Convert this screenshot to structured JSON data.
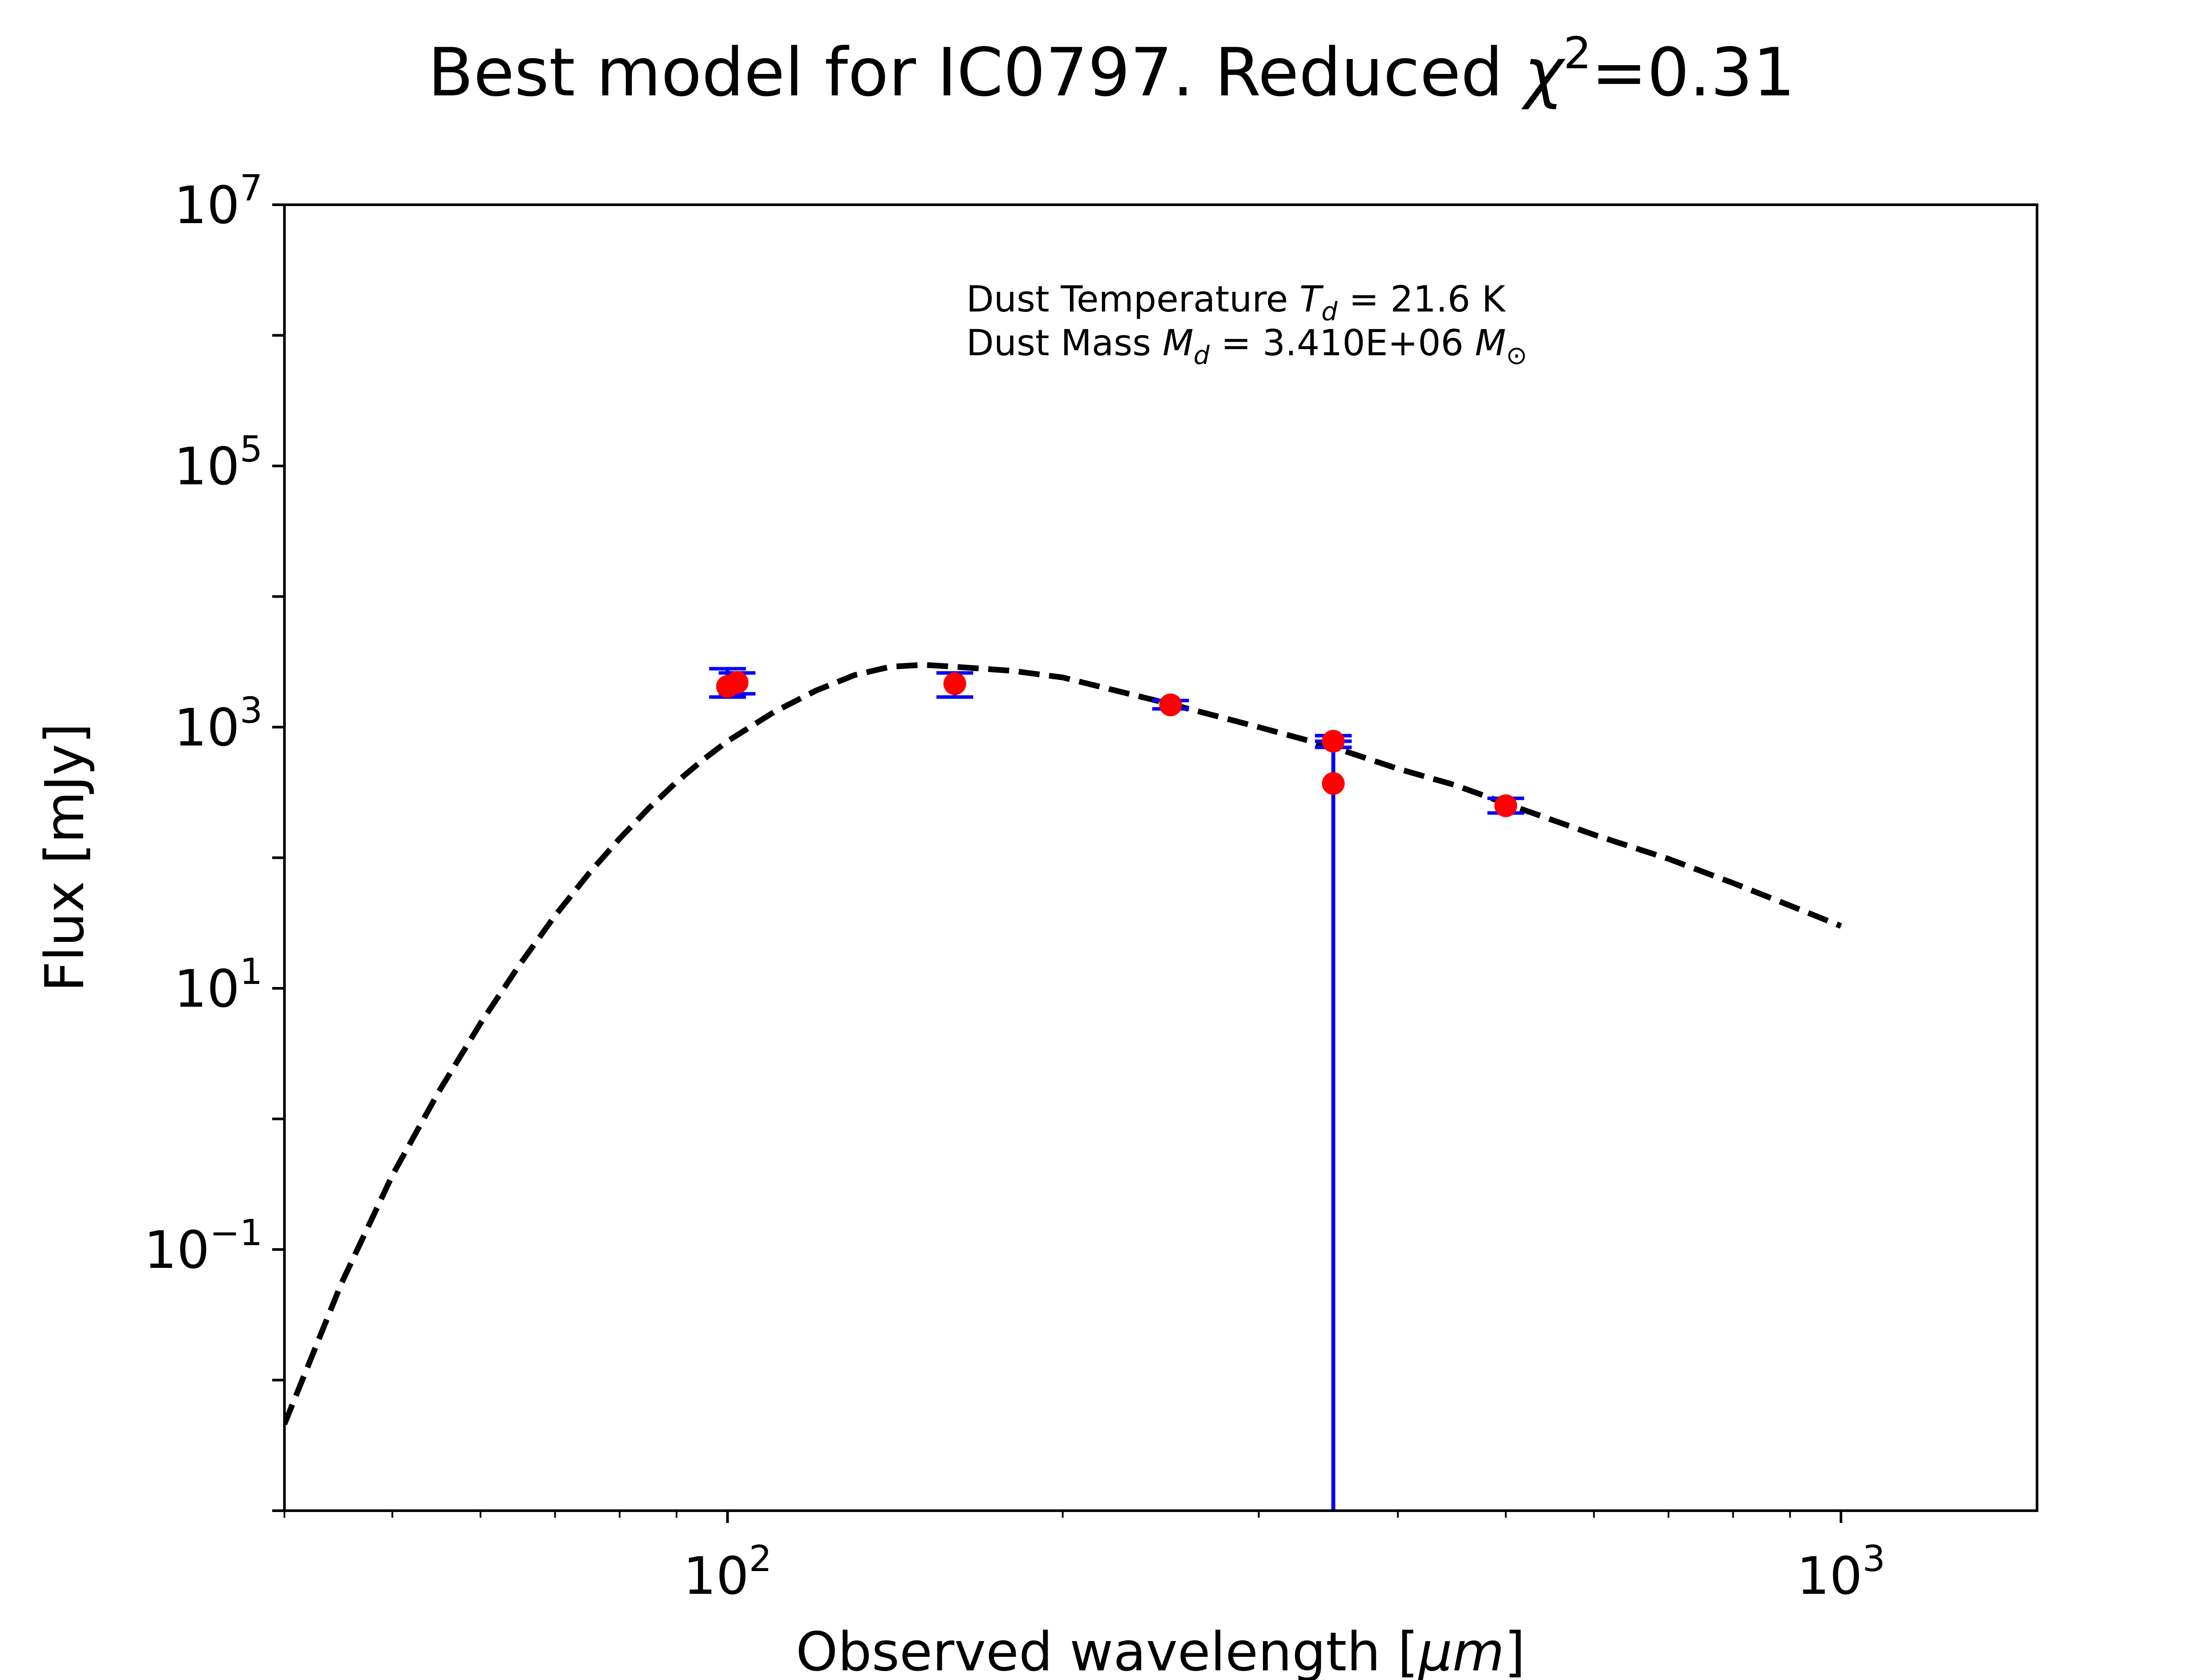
{
  "chart_data": {
    "type": "scatter",
    "title_main": "Best model for IC0797. Reduced ",
    "title_symbol": "χ",
    "title_exp": "2",
    "title_value": "=0.31",
    "xlabel_main": "Observed wavelength [",
    "xlabel_unit": "μm",
    "xlabel_end": "]",
    "ylabel": "Flux [mJy]",
    "xscale": "log",
    "yscale": "log",
    "xlim": [
      40,
      1500
    ],
    "ylim": [
      0.001,
      10000000
    ],
    "x_ticks": [
      {
        "base": "10",
        "exp": "2",
        "value": 100
      },
      {
        "base": "10",
        "exp": "3",
        "value": 1000
      }
    ],
    "y_ticks": [
      {
        "base": "10",
        "exp": "−1",
        "value": 0.1
      },
      {
        "base": "10",
        "exp": "1",
        "value": 10
      },
      {
        "base": "10",
        "exp": "3",
        "value": 1000
      },
      {
        "base": "10",
        "exp": "5",
        "value": 100000
      },
      {
        "base": "10",
        "exp": "7",
        "value": 10000000
      }
    ],
    "annotations": {
      "temperature_prefix": "Dust Temperature ",
      "temperature_symbol": "T",
      "temperature_sub": "d",
      "temperature_value": " = 21.6 K",
      "mass_prefix": "Dust Mass ",
      "mass_symbol": "M",
      "mass_sub": "d",
      "mass_value": " = 3.410E+06 ",
      "mass_unit_symbol": "M",
      "mass_unit_sub": "⊙"
    },
    "model": {
      "style": "dashed",
      "color": "#000000",
      "dust_temperature_K": 21.6,
      "x": [
        40,
        45,
        50,
        55,
        60,
        65,
        70,
        75,
        80,
        85,
        90,
        95,
        100,
        110,
        120,
        130,
        140,
        150,
        160,
        180,
        200,
        250,
        300,
        350,
        400,
        450,
        500,
        600,
        700,
        800,
        900,
        1000
      ],
      "y": [
        0.0046,
        0.055,
        0.37,
        1.6,
        5.4,
        15,
        36,
        75,
        140,
        240,
        380,
        560,
        780,
        1300,
        1900,
        2500,
        2900,
        3000,
        2900,
        2700,
        2400,
        1500,
        1000,
        700,
        480,
        360,
        260,
        150,
        98,
        64,
        43,
        30
      ]
    },
    "points": {
      "color": "#ff0000",
      "errorbar_color": "#0000ff",
      "data": [
        {
          "x": 100,
          "y": 2050,
          "yerr_low": 1700,
          "yerr_high": 2800
        },
        {
          "x": 102,
          "y": 2200,
          "yerr_low": 1800,
          "yerr_high": 2600
        },
        {
          "x": 160,
          "y": 2150,
          "yerr_low": 1700,
          "yerr_high": 2600
        },
        {
          "x": 250,
          "y": 1480,
          "yerr_low": 1380,
          "yerr_high": 1600
        },
        {
          "x": 350,
          "y": 780,
          "yerr_low": 700,
          "yerr_high": 860
        },
        {
          "x": 350,
          "y": 370,
          "yerr_low": 0.001,
          "yerr_high": 780
        },
        {
          "x": 500,
          "y": 250,
          "yerr_low": 220,
          "yerr_high": 285
        }
      ]
    },
    "grid": false,
    "legend": "none"
  }
}
